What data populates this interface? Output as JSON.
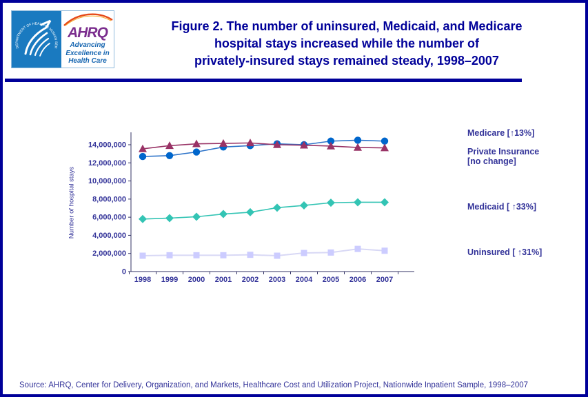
{
  "header": {
    "logo": {
      "ahrq": "AHRQ",
      "tagline_lines": [
        "Advancing",
        "Excellence in",
        "Health Care"
      ],
      "seal_text": "DEPARTMENT OF HEALTH & HUMAN SERVICES · USA"
    },
    "title_lines": [
      "Figure 2. The number of uninsured, Medicaid, and Medicare",
      "hospital stays increased while the number of",
      "privately-insured stays remained steady, 1998–2007"
    ]
  },
  "chart_data": {
    "type": "line",
    "title": "",
    "xlabel": "",
    "ylabel": "Number of hospital stays",
    "categories": [
      "1998",
      "1999",
      "2000",
      "2001",
      "2002",
      "2003",
      "2004",
      "2005",
      "2006",
      "2007"
    ],
    "ylim": [
      0,
      14800000
    ],
    "y_tick_step": 2000000,
    "y_tick_labels": [
      "0",
      "2,000,000",
      "4,000,000",
      "6,000,000",
      "8,000,000",
      "10,000,000",
      "12,000,000",
      "14,000,000"
    ],
    "grid": false,
    "legend_position": "right",
    "series": [
      {
        "name": "Medicare",
        "marker": "circle",
        "color": "#0066CC",
        "line_color": "#2E74C9",
        "values": [
          12700000,
          12800000,
          13200000,
          13750000,
          13900000,
          14100000,
          14000000,
          14400000,
          14500000,
          14400000
        ]
      },
      {
        "name": "Private Insurance",
        "marker": "triangle",
        "color": "#993366",
        "line_color": "#993366",
        "values": [
          13550000,
          13900000,
          14100000,
          14150000,
          14200000,
          14000000,
          13950000,
          13850000,
          13700000,
          13650000
        ]
      },
      {
        "name": "Medicaid",
        "marker": "diamond",
        "color": "#33C4B4",
        "line_color": "#33C4B4",
        "values": [
          5800000,
          5900000,
          6050000,
          6350000,
          6550000,
          7050000,
          7300000,
          7600000,
          7650000,
          7650000
        ]
      },
      {
        "name": "Uninsured",
        "marker": "square",
        "color": "#CCCCFF",
        "line_color": "#D8D8F5",
        "values": [
          1750000,
          1800000,
          1800000,
          1800000,
          1850000,
          1750000,
          2050000,
          2100000,
          2500000,
          2300000
        ]
      }
    ]
  },
  "legend": {
    "entries": [
      {
        "name": "Medicare",
        "lines": [
          "Medicare  [↑13%]"
        ]
      },
      {
        "name": "Private Insurance",
        "lines": [
          "Private Insurance",
          "[no change]"
        ]
      },
      {
        "name": "Medicaid",
        "lines": [
          "Medicaid [ ↑33%]"
        ]
      },
      {
        "name": "Uninsured",
        "lines": [
          "Uninsured  [ ↑31%]"
        ]
      }
    ]
  },
  "footer": {
    "source": "Source: AHRQ, Center for Delivery, Organization, and Markets, Healthcare Cost and Utilization Project, Nationwide Inpatient Sample, 1998–2007"
  }
}
